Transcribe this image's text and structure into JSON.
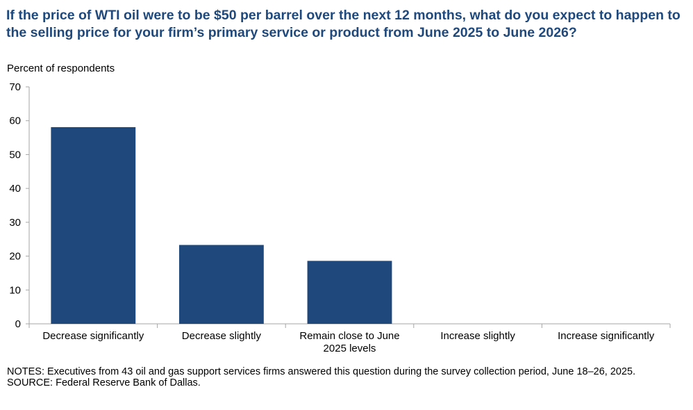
{
  "title": "If the price of WTI oil were to be $50 per barrel over the next 12 months, what do you expect to happen to the selling price for your firm’s primary service or product from June 2025 to June 2026?",
  "notes": "NOTES: Executives from 43 oil and gas support services firms answered this question during the survey collection period, June 18–26, 2025.",
  "source": "SOURCE: Federal Reserve Bank of Dallas.",
  "colors": {
    "bar": "#1f497d",
    "axis": "#a6a6a6"
  },
  "chart_data": {
    "type": "bar",
    "ylabel": "Percent of respondents",
    "xlabel": "",
    "categories": [
      [
        "Decrease significantly"
      ],
      [
        "Decrease slightly"
      ],
      [
        "Remain close to June",
        "2025 levels"
      ],
      [
        "Increase slightly"
      ],
      [
        "Increase significantly"
      ]
    ],
    "values": [
      58.1,
      23.3,
      18.6,
      0,
      0
    ],
    "ylim": [
      0,
      70
    ],
    "yticks": [
      0,
      10,
      20,
      30,
      40,
      50,
      60,
      70
    ],
    "grid": false,
    "legend": "none"
  }
}
